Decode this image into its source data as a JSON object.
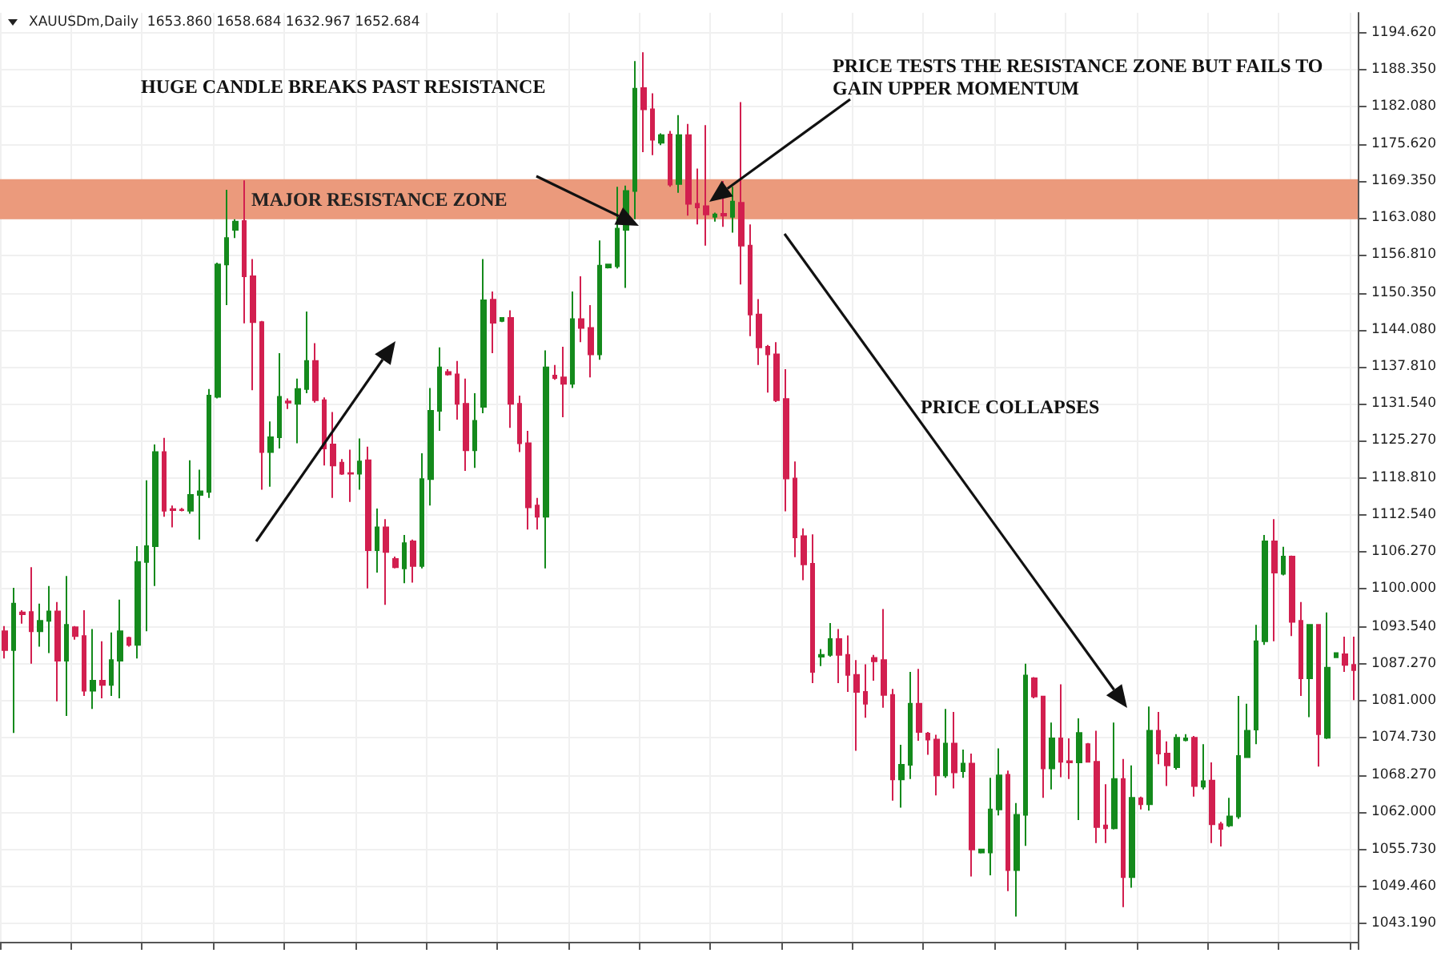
{
  "chart_data": {
    "type": "candlestick",
    "tick_labels": "y",
    "grid": true,
    "colors": [
      "#d21f4f",
      "#148a1c",
      "#d21f4f",
      "#d21f4f",
      "#148a1c",
      "#148a1c",
      "#d21f4f",
      "#148a1c",
      "#d21f4f",
      "#d21f4f",
      "#148a1c",
      "#d21f4f",
      "#148a1c",
      "#148a1c",
      "#d21f4f",
      "#148a1c",
      "#148a1c",
      "#148a1c",
      "#d21f4f",
      "#d21f4f",
      "#d21f4f",
      "#148a1c",
      "#148a1c",
      "#148a1c",
      "#148a1c",
      "#148a1c",
      "#148a1c",
      "#d21f4f",
      "#d21f4f",
      "#d21f4f",
      "#148a1c",
      "#148a1c",
      "#d21f4f",
      "#148a1c",
      "#148a1c",
      "#d21f4f",
      "#d21f4f",
      "#d21f4f",
      "#d21f4f",
      "#d21f4f",
      "#148a1c",
      "#d21f4f",
      "#148a1c",
      "#d21f4f",
      "#d21f4f",
      "#148a1c",
      "#d21f4f",
      "#148a1c",
      "#148a1c",
      "#148a1c",
      "#d21f4f",
      "#d21f4f",
      "#d21f4f",
      "#148a1c",
      "#148a1c",
      "#d21f4f",
      "#148a1c",
      "#d21f4f",
      "#d21f4f",
      "#d21f4f",
      "#d21f4f",
      "#148a1c",
      "#d21f4f",
      "#d21f4f",
      "#148a1c",
      "#d21f4f",
      "#d21f4f",
      "#148a1c",
      "#148a1c",
      "#148a1c",
      "#148a1c",
      "#148a1c",
      "#d21f4f",
      "#d21f4f",
      "#148a1c",
      "#d21f4f",
      "#148a1c",
      "#d21f4f",
      "#d21f4f",
      "#d21f4f",
      "#148a1c",
      "#d21f4f",
      "#148a1c",
      "#d21f4f",
      "#d21f4f",
      "#d21f4f",
      "#d21f4f",
      "#d21f4f",
      "#d21f4f",
      "#d21f4f",
      "#d21f4f",
      "#d21f4f",
      "#148a1c",
      "#148a1c",
      "#d21f4f",
      "#d21f4f",
      "#d21f4f",
      "#d21f4f",
      "#d21f4f",
      "#d21f4f",
      "#d21f4f",
      "#148a1c",
      "#148a1c",
      "#d21f4f",
      "#d21f4f",
      "#d21f4f",
      "#148a1c",
      "#d21f4f",
      "#148a1c",
      "#d21f4f",
      "#148a1c",
      "#148a1c",
      "#148a1c",
      "#d21f4f",
      "#148a1c",
      "#148a1c",
      "#d21f4f",
      "#d21f4f",
      "#148a1c",
      "#d21f4f",
      "#d21f4f",
      "#148a1c",
      "#d21f4f",
      "#d21f4f",
      "#d21f4f",
      "#148a1c",
      "#d21f4f",
      "#148a1c",
      "#d21f4f",
      "#148a1c",
      "#d21f4f",
      "#d21f4f",
      "#148a1c",
      "#148a1c",
      "#d21f4f",
      "#148a1c",
      "#d21f4f",
      "#d21f4f",
      "#148a1c",
      "#148a1c",
      "#148a1c",
      "#148a1c",
      "#148a1c",
      "#d21f4f",
      "#148a1c",
      "#d21f4f",
      "#d21f4f",
      "#148a1c",
      "#d21f4f",
      "#148a1c",
      "#148a1c",
      "#d21f4f",
      "#d21f4f"
    ],
    "ylim": [
      1040,
      1198
    ],
    "yticks": [
      {
        "value": 1043.19,
        "label": "1043.190"
      },
      {
        "value": 1049.46,
        "label": "1049.460"
      },
      {
        "value": 1055.73,
        "label": "1055.730"
      },
      {
        "value": 1062,
        "label": "1062.000"
      },
      {
        "value": 1068.27,
        "label": "1068.270"
      },
      {
        "value": 1074.73,
        "label": "1074.730"
      },
      {
        "value": 1081,
        "label": "1081.000"
      },
      {
        "value": 1087.27,
        "label": "1087.270"
      },
      {
        "value": 1093.54,
        "label": "1093.540"
      },
      {
        "value": 1100,
        "label": "1100.000"
      },
      {
        "value": 1106.27,
        "label": "1106.270"
      },
      {
        "value": 1112.54,
        "label": "1112.540"
      },
      {
        "value": 1118.81,
        "label": "1118.810"
      },
      {
        "value": 1125.27,
        "label": "1125.270"
      },
      {
        "value": 1131.54,
        "label": "1131.540"
      },
      {
        "value": 1137.81,
        "label": "1137.810"
      },
      {
        "value": 1144.08,
        "label": "1144.080"
      },
      {
        "value": 1150.35,
        "label": "1150.350"
      },
      {
        "value": 1156.81,
        "label": "1156.810"
      },
      {
        "value": 1163.08,
        "label": "1163.080"
      },
      {
        "value": 1169.35,
        "label": "1169.350"
      },
      {
        "value": 1175.62,
        "label": "1175.620"
      },
      {
        "value": 1182.08,
        "label": "1182.080"
      },
      {
        "value": 1188.35,
        "label": "1188.350"
      },
      {
        "value": 1194.62,
        "label": "1194.620"
      }
    ],
    "bands": [
      {
        "axis": "y",
        "from": 1162.9,
        "to": 1169.7,
        "label": "MAJOR RESISTANCE ZONE",
        "color": "#eb9a7c"
      }
    ],
    "annotations": [
      "XAUUSDm,Daily  1653.860 1658.684 1632.967 1652.684",
      "HUGE CANDLE BREAKS PAST RESISTANCE",
      "PRICE TESTS THE RESISTANCE ZONE BUT FAILS TO GAIN UPPER MOMENTUM",
      "PRICE COLLAPSES"
    ],
    "categories": [
      null,
      null,
      null,
      null,
      null,
      null,
      null,
      null,
      null,
      null,
      null,
      null,
      null,
      null,
      null,
      null,
      null,
      null,
      null,
      null,
      null,
      null,
      null,
      null,
      null,
      null,
      null,
      null,
      null,
      null,
      null,
      null,
      null,
      null,
      null,
      null,
      null,
      null,
      null,
      null,
      null,
      null,
      null,
      null,
      null,
      null,
      null,
      null,
      null,
      null,
      null,
      null,
      null,
      null,
      null,
      null,
      null,
      null,
      null,
      null,
      null,
      null,
      null,
      null,
      null,
      null,
      null,
      null,
      null,
      null,
      null,
      null,
      null,
      null,
      null,
      null,
      null,
      null,
      null,
      null,
      null,
      null,
      null,
      null,
      null,
      null,
      null,
      null,
      null,
      null,
      null,
      null,
      null,
      null,
      null,
      null,
      null,
      null,
      null,
      null,
      null,
      null,
      null,
      null,
      null,
      null,
      null,
      null,
      null,
      null,
      null,
      null,
      null,
      null,
      null,
      null,
      null,
      null,
      null,
      null,
      null,
      null,
      null,
      null,
      null,
      null,
      null,
      null,
      null,
      null,
      null,
      null,
      null,
      null,
      null,
      null,
      null,
      null,
      null,
      null,
      null,
      null,
      null,
      null,
      null,
      null,
      null,
      null,
      null,
      null,
      null,
      null,
      null
    ],
    "ohlc": [
      [
        1092.8,
        1093.7,
        1088.2,
        1089.6
      ],
      [
        1089.6,
        1100.2,
        1075.5,
        1097.5
      ],
      [
        1096.0,
        1096.4,
        1094.1,
        1095.7
      ],
      [
        1096.1,
        1103.7,
        1087.3,
        1092.8
      ],
      [
        1092.8,
        1097.5,
        1090.2,
        1094.6
      ],
      [
        1094.6,
        1100.5,
        1089.1,
        1096.2
      ],
      [
        1096.2,
        1097.8,
        1080.9,
        1087.8
      ],
      [
        1087.8,
        1102.2,
        1078.4,
        1093.9
      ],
      [
        1093.5,
        1093.7,
        1091.4,
        1092.0
      ],
      [
        1092.0,
        1096.4,
        1081.8,
        1082.7
      ],
      [
        1082.7,
        1093.2,
        1079.6,
        1084.4
      ],
      [
        1084.4,
        1091.1,
        1081.4,
        1083.7
      ],
      [
        1083.7,
        1092.6,
        1081.8,
        1087.9
      ],
      [
        1087.8,
        1098.2,
        1081.4,
        1092.8
      ],
      [
        1091.7,
        1091.9,
        1090.2,
        1090.5
      ],
      [
        1090.5,
        1107.3,
        1088.2,
        1104.6
      ],
      [
        1104.6,
        1118.5,
        1092.8,
        1107.3
      ],
      [
        1107.3,
        1124.6,
        1100.5,
        1123.3
      ],
      [
        1123.3,
        1125.7,
        1112.3,
        1113.3
      ],
      [
        1113.6,
        1114.2,
        1110.5,
        1113.4
      ],
      [
        1113.5,
        1113.8,
        1113.2,
        1113.4
      ],
      [
        1113.3,
        1121.9,
        1112.8,
        1116.0
      ],
      [
        1116.0,
        1120.3,
        1108.4,
        1116.6
      ],
      [
        1116.5,
        1134.0,
        1115.5,
        1132.9
      ],
      [
        1132.7,
        1155.5,
        1132.4,
        1155.2
      ],
      [
        1155.2,
        1167.9,
        1148.3,
        1159.7
      ],
      [
        1161.1,
        1162.9,
        1159.7,
        1162.5
      ],
      [
        1162.6,
        1169.5,
        1145.2,
        1153.2
      ],
      [
        1153.2,
        1156.1,
        1133.8,
        1145.4
      ],
      [
        1145.4,
        1145.6,
        1116.9,
        1123.3
      ],
      [
        1123.3,
        1128.5,
        1117.4,
        1125.8
      ],
      [
        1125.8,
        1140.1,
        1123.9,
        1132.7
      ],
      [
        1131.9,
        1132.4,
        1130.6,
        1131.7
      ],
      [
        1131.5,
        1135.8,
        1124.8,
        1134.0
      ],
      [
        1134.0,
        1147.2,
        1133.3,
        1138.8
      ],
      [
        1138.8,
        1141.8,
        1131.7,
        1132.1
      ],
      [
        1132.1,
        1132.6,
        1121.0,
        1123.9
      ],
      [
        1124.6,
        1130.1,
        1115.5,
        1121.0
      ],
      [
        1121.5,
        1122.1,
        1119.4,
        1119.6
      ],
      [
        1119.7,
        1123.7,
        1114.8,
        1119.6
      ],
      [
        1119.6,
        1125.6,
        1116.9,
        1121.7
      ],
      [
        1121.9,
        1124.2,
        1100.1,
        1106.6
      ],
      [
        1106.6,
        1113.7,
        1102.8,
        1110.5
      ],
      [
        1110.5,
        1111.9,
        1097.3,
        1106.3
      ],
      [
        1105.1,
        1105.5,
        1103.5,
        1103.7
      ],
      [
        1103.5,
        1109.2,
        1101.0,
        1107.8
      ],
      [
        1108.1,
        1108.4,
        1101.1,
        1103.9
      ],
      [
        1103.9,
        1123.1,
        1103.5,
        1118.7
      ],
      [
        1118.7,
        1134.2,
        1114.2,
        1130.3
      ],
      [
        1130.3,
        1141.1,
        1126.9,
        1137.7
      ],
      [
        1136.9,
        1137.4,
        1136.3,
        1136.5
      ],
      [
        1136.5,
        1138.8,
        1128.8,
        1131.5
      ],
      [
        1131.5,
        1135.8,
        1120.1,
        1123.6
      ],
      [
        1123.6,
        1133.3,
        1120.6,
        1128.6
      ],
      [
        1131.0,
        1156.1,
        1129.9,
        1149.1
      ],
      [
        1149.2,
        1150.6,
        1140.1,
        1145.3
      ],
      [
        1145.6,
        1146.2,
        1145.4,
        1146.1
      ],
      [
        1146.1,
        1147.4,
        1127.4,
        1131.5
      ],
      [
        1131.5,
        1132.9,
        1123.3,
        1124.8
      ],
      [
        1124.8,
        1126.9,
        1110.1,
        1113.9
      ],
      [
        1114.2,
        1115.5,
        1110.1,
        1112.3
      ],
      [
        1112.3,
        1140.6,
        1103.5,
        1137.7
      ],
      [
        1136.3,
        1138.1,
        1135.6,
        1135.9
      ],
      [
        1136.0,
        1141.2,
        1129.2,
        1134.9
      ],
      [
        1134.9,
        1150.6,
        1134.2,
        1145.9
      ],
      [
        1145.9,
        1153.2,
        1142.0,
        1144.4
      ],
      [
        1144.4,
        1148.3,
        1136.0,
        1139.9
      ],
      [
        1139.9,
        1159.3,
        1139.0,
        1155.0
      ],
      [
        1154.7,
        1155.2,
        1154.5,
        1155.2
      ],
      [
        1154.9,
        1168.4,
        1154.5,
        1161.3
      ],
      [
        1161.1,
        1168.6,
        1151.2,
        1167.7
      ],
      [
        1167.7,
        1189.8,
        1162.9,
        1185.1
      ],
      [
        1185.2,
        1191.3,
        1174.3,
        1181.6
      ],
      [
        1181.6,
        1184.3,
        1173.8,
        1176.4
      ],
      [
        1175.9,
        1177.5,
        1175.5,
        1177.2
      ],
      [
        1177.3,
        1177.9,
        1168.4,
        1168.8
      ],
      [
        1168.9,
        1180.6,
        1167.4,
        1177.2
      ],
      [
        1177.2,
        1179.1,
        1163.5,
        1165.5
      ],
      [
        1165.5,
        1171.5,
        1162.0,
        1164.9
      ],
      [
        1165.1,
        1178.9,
        1158.4,
        1163.7
      ],
      [
        1163.3,
        1164.0,
        1162.5,
        1163.7
      ],
      [
        1163.8,
        1169.4,
        1161.6,
        1163.5
      ],
      [
        1163.3,
        1168.4,
        1160.6,
        1165.9
      ],
      [
        1165.7,
        1182.8,
        1151.8,
        1158.4
      ],
      [
        1158.4,
        1162.0,
        1143.0,
        1146.7
      ],
      [
        1146.7,
        1149.3,
        1138.1,
        1141.1
      ],
      [
        1141.2,
        1141.5,
        1133.4,
        1139.9
      ],
      [
        1139.9,
        1142.0,
        1131.8,
        1132.1
      ],
      [
        1132.3,
        1137.4,
        1113.2,
        1118.8
      ],
      [
        1118.8,
        1121.7,
        1105.4,
        1108.8
      ],
      [
        1109.0,
        1110.3,
        1101.5,
        1104.2
      ],
      [
        1104.3,
        1109.3,
        1084.0,
        1085.9
      ],
      [
        1088.5,
        1089.8,
        1086.9,
        1088.8
      ],
      [
        1088.8,
        1094.2,
        1088.5,
        1091.5
      ],
      [
        1091.5,
        1093.2,
        1084.0,
        1088.8
      ],
      [
        1088.8,
        1092.1,
        1082.5,
        1085.4
      ],
      [
        1085.4,
        1087.9,
        1072.5,
        1082.5
      ],
      [
        1082.5,
        1087.2,
        1078.1,
        1080.5
      ],
      [
        1088.3,
        1088.8,
        1084.4,
        1087.7
      ],
      [
        1087.9,
        1096.6,
        1079.8,
        1082.0
      ],
      [
        1082.0,
        1083.0,
        1064.0,
        1067.6
      ],
      [
        1067.6,
        1073.5,
        1062.8,
        1070.1
      ],
      [
        1070.1,
        1085.9,
        1067.7,
        1080.5
      ],
      [
        1080.5,
        1086.4,
        1074.2,
        1075.7
      ],
      [
        1075.4,
        1075.7,
        1071.8,
        1074.4
      ],
      [
        1074.4,
        1075.2,
        1064.9,
        1068.3
      ],
      [
        1068.3,
        1079.6,
        1067.9,
        1073.7
      ],
      [
        1073.7,
        1079.1,
        1066.1,
        1068.8
      ],
      [
        1069.0,
        1072.7,
        1067.9,
        1070.3
      ],
      [
        1070.3,
        1072.0,
        1051.1,
        1055.7
      ],
      [
        1055.2,
        1055.8,
        1055.0,
        1055.7
      ],
      [
        1055.2,
        1067.9,
        1051.3,
        1062.5
      ],
      [
        1062.5,
        1072.9,
        1061.5,
        1068.3
      ],
      [
        1068.4,
        1069.1,
        1048.6,
        1052.2
      ],
      [
        1052.2,
        1063.6,
        1044.3,
        1061.6
      ],
      [
        1061.6,
        1087.3,
        1056.3,
        1085.3
      ],
      [
        1084.8,
        1085.0,
        1081.4,
        1081.7
      ],
      [
        1081.7,
        1081.8,
        1064.5,
        1069.5
      ],
      [
        1069.5,
        1077.3,
        1065.9,
        1074.6
      ],
      [
        1074.6,
        1083.8,
        1068.0,
        1070.6
      ],
      [
        1070.7,
        1074.6,
        1067.7,
        1070.5
      ],
      [
        1070.5,
        1078.0,
        1060.7,
        1075.5
      ],
      [
        1073.6,
        1073.8,
        1070.5,
        1070.6
      ],
      [
        1070.6,
        1075.9,
        1056.8,
        1059.5
      ],
      [
        1059.8,
        1066.8,
        1056.8,
        1059.3
      ],
      [
        1059.3,
        1077.3,
        1059.1,
        1067.7
      ],
      [
        1067.7,
        1071.1,
        1045.9,
        1051.0
      ],
      [
        1051.0,
        1070.0,
        1049.2,
        1064.5
      ],
      [
        1064.4,
        1064.7,
        1062.5,
        1063.4
      ],
      [
        1063.4,
        1080.0,
        1062.3,
        1075.9
      ],
      [
        1075.9,
        1079.1,
        1070.2,
        1072.0
      ],
      [
        1072.0,
        1074.1,
        1066.5,
        1070.0
      ],
      [
        1069.7,
        1075.3,
        1069.3,
        1074.7
      ],
      [
        1074.3,
        1075.3,
        1074.1,
        1074.6
      ],
      [
        1074.7,
        1075.0,
        1064.7,
        1066.5
      ],
      [
        1066.4,
        1073.6,
        1065.9,
        1067.3
      ],
      [
        1067.4,
        1070.5,
        1056.8,
        1060.0
      ],
      [
        1060.0,
        1060.4,
        1056.2,
        1059.2
      ],
      [
        1059.8,
        1064.5,
        1059.5,
        1061.3
      ],
      [
        1061.3,
        1081.8,
        1060.9,
        1071.6
      ],
      [
        1071.4,
        1080.5,
        1071.4,
        1075.9
      ],
      [
        1076.1,
        1093.9,
        1073.6,
        1091.1
      ],
      [
        1091.1,
        1109.2,
        1090.5,
        1108.1
      ],
      [
        1108.1,
        1111.9,
        1091.1,
        1102.8
      ],
      [
        1102.6,
        1107.2,
        1102.3,
        1105.5
      ],
      [
        1105.5,
        1105.7,
        1092.0,
        1094.4
      ],
      [
        1094.6,
        1097.8,
        1081.8,
        1084.8
      ],
      [
        1084.8,
        1093.9,
        1078.2,
        1093.9
      ],
      [
        1093.9,
        1093.9,
        1069.8,
        1075.3
      ],
      [
        1074.7,
        1096.0,
        1074.5,
        1086.6
      ],
      [
        1088.4,
        1089.1,
        1088.4,
        1089.1
      ],
      [
        1088.9,
        1091.9,
        1085.9,
        1087.1
      ],
      [
        1087.1,
        1091.9,
        1081.1,
        1086.2
      ]
    ]
  }
}
